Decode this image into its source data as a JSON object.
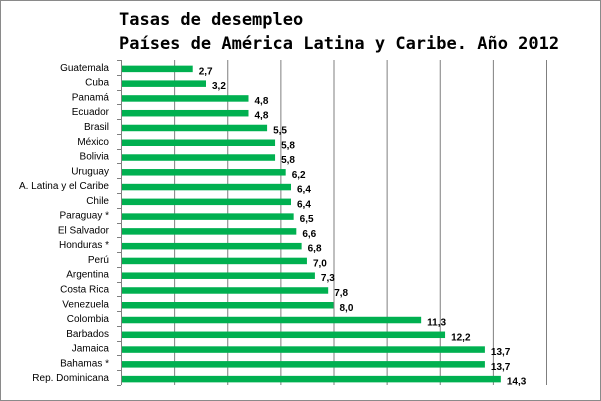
{
  "chart_data": {
    "type": "bar",
    "orientation": "horizontal",
    "title": "Tasas de desempleo",
    "subtitle": "Países de América Latina y Caribe. Año 2012",
    "categories": [
      "Guatemala",
      "Cuba",
      "Panamá",
      "Ecuador",
      "Brasil",
      "México",
      "Bolivia",
      "Uruguay",
      "A. Latina y el Caribe",
      "Chile",
      "Paraguay *",
      "El Salvador",
      "Honduras *",
      "Perú",
      "Argentina",
      "Costa Rica",
      "Venezuela",
      "Colombia",
      "Barbados",
      "Jamaica",
      "Bahamas *",
      "Rep. Dominicana"
    ],
    "values": [
      2.7,
      3.2,
      4.8,
      4.8,
      5.5,
      5.8,
      5.8,
      6.2,
      6.4,
      6.4,
      6.5,
      6.6,
      6.8,
      7.0,
      7.3,
      7.8,
      8.0,
      11.3,
      12.2,
      13.7,
      13.7,
      14.3
    ],
    "value_labels": [
      "2,7",
      "3,2",
      "4,8",
      "4,8",
      "5,5",
      "5,8",
      "5,8",
      "6,2",
      "6,4",
      "6,4",
      "6,5",
      "6,6",
      "6,8",
      "7,0",
      "7,3",
      "7,8",
      "8,0",
      "11,3",
      "12,2",
      "13,7",
      "13,7",
      "14,3"
    ],
    "xlim": [
      0,
      16
    ],
    "grid": true,
    "bar_color": "#00b050"
  }
}
